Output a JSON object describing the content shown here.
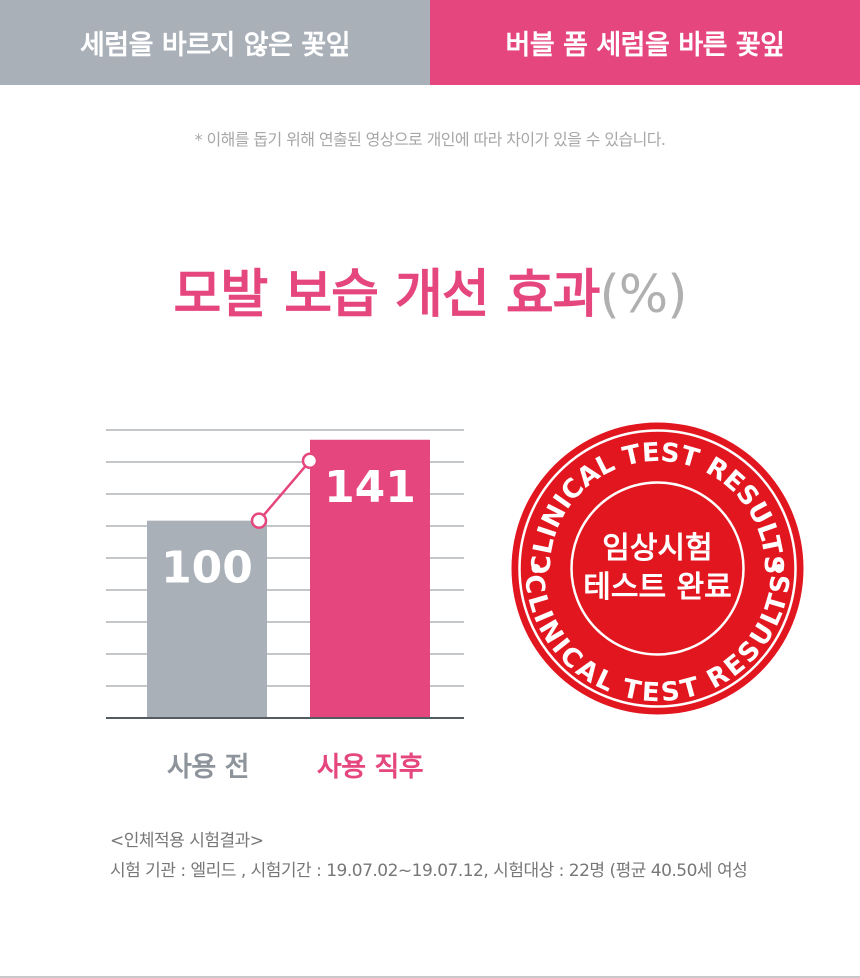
{
  "tabs": {
    "left_label": "세럼을 바르지 않은 꽃잎",
    "right_label": "버블 폼 세럼을 바른 꽃잎"
  },
  "disclaimer": "* 이해를 돕기 위해 연출된 영상으로 개인에 따라 차이가 있을 수 있습니다.",
  "title": {
    "text": "모발 보습 개선 효과",
    "unit": "(%)"
  },
  "chart_data": {
    "type": "bar",
    "categories": [
      "사용 전",
      "사용 직후"
    ],
    "values": [
      100,
      141
    ],
    "ylim": [
      0,
      150
    ],
    "grid": true,
    "colors": [
      "#a9b0b8",
      "#e5467d"
    ],
    "trend_line_color": "#e5467d"
  },
  "badge": {
    "top_text": "CLINICAL TEST RESULTS",
    "bottom_text": "CLINICAL TEST RESULTS",
    "line1": "임상시험",
    "line2": "테스트 완료",
    "color": "#e2161f"
  },
  "notes": {
    "heading": "<인체적용 시험결과>",
    "details": "시험 기관 : 엘리드 ,  시험기간 : 19.07.02~19.07.12, 시험대상 : 22명 (평균 40.50세 여성"
  }
}
